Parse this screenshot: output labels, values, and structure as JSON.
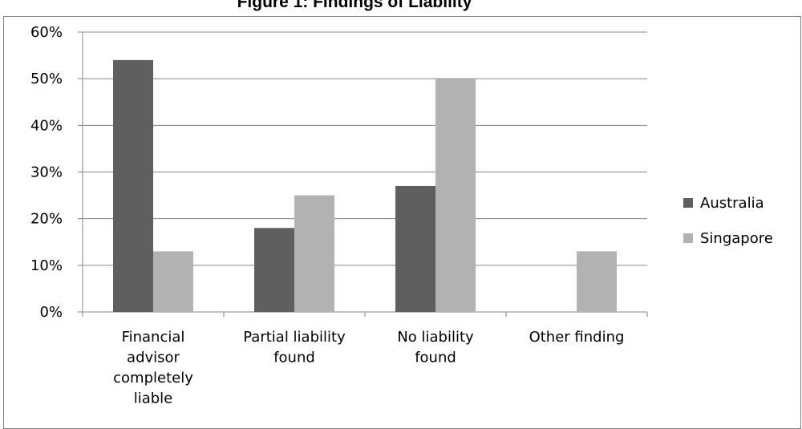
{
  "chart_data": {
    "type": "bar",
    "title": "Figure 1: Findings of Liability",
    "xlabel": "",
    "ylabel": "",
    "ylim": [
      0,
      60
    ],
    "yticks": [
      "0%",
      "10%",
      "20%",
      "30%",
      "40%",
      "50%",
      "60%"
    ],
    "grid": true,
    "legend_position": "right",
    "categories": [
      [
        "Financial",
        "advisor",
        "completely",
        "liable"
      ],
      [
        "Partial liability",
        "found"
      ],
      [
        "No liability",
        "found"
      ],
      [
        "Other finding"
      ]
    ],
    "series": [
      {
        "name": "Australia",
        "color": "#5f5f5f",
        "values": [
          54,
          18,
          27,
          0
        ]
      },
      {
        "name": "Singapore",
        "color": "#b2b2b2",
        "values": [
          13,
          25,
          50,
          13
        ]
      }
    ]
  }
}
